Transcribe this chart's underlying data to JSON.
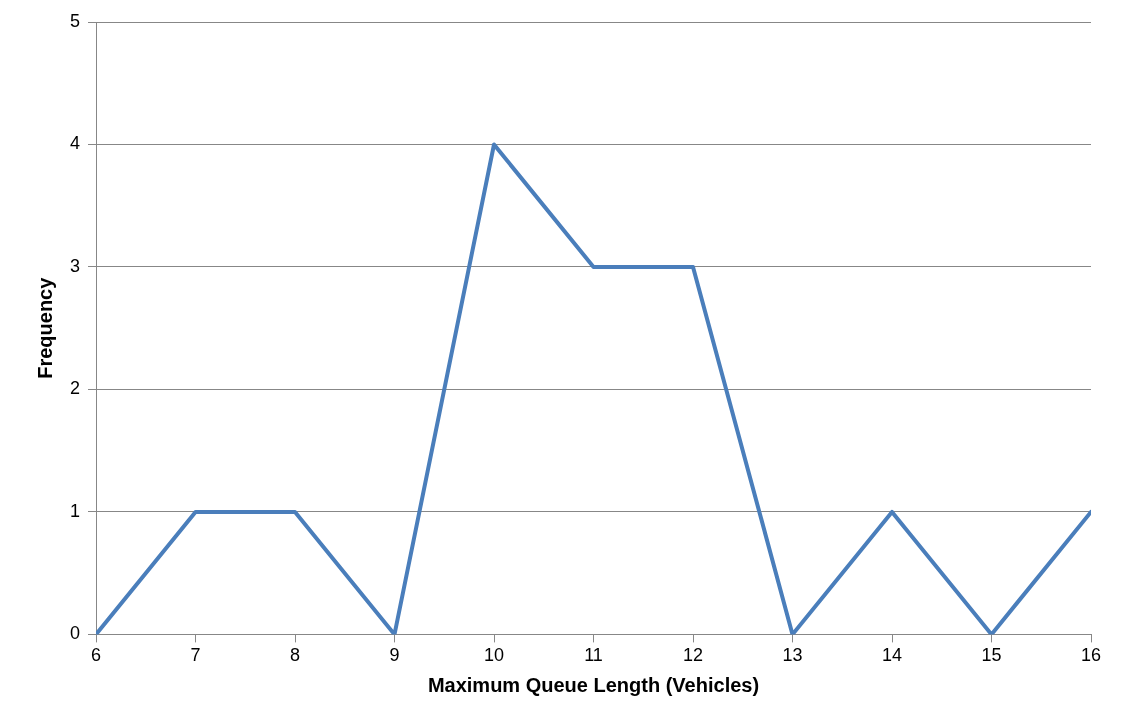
{
  "chart_data": {
    "type": "line",
    "xlabel": "Maximum Queue Length (Vehicles)",
    "ylabel": "Frequency",
    "x": [
      6,
      7,
      8,
      9,
      10,
      11,
      12,
      13,
      14,
      15,
      16
    ],
    "series": [
      {
        "color": "#4a7ebb",
        "values": [
          0,
          1,
          1,
          0,
          4,
          3,
          3,
          0,
          1,
          0,
          1
        ]
      }
    ],
    "xlim": [
      6,
      16
    ],
    "xticks": [
      6,
      7,
      8,
      9,
      10,
      11,
      12,
      13,
      14,
      15,
      16
    ],
    "ylim": [
      0,
      5
    ],
    "yticks": [
      0,
      1,
      2,
      3,
      4,
      5
    ],
    "grid": "y",
    "legend": false,
    "marker": "none",
    "line_style": "solid"
  }
}
